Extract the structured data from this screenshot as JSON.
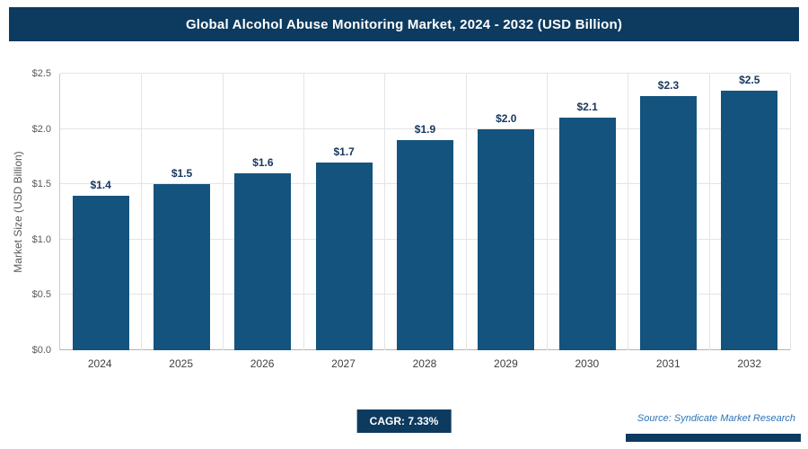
{
  "header": {
    "title": "Global Alcohol Abuse Monitoring Market, 2024 - 2032 (USD Billion)"
  },
  "chart_data": {
    "type": "bar",
    "title": "Global Alcohol Abuse Monitoring Market, 2024 - 2032 (USD Billion)",
    "categories": [
      "2024",
      "2025",
      "2026",
      "2027",
      "2028",
      "2029",
      "2030",
      "2031",
      "2032"
    ],
    "values": [
      1.4,
      1.5,
      1.6,
      1.7,
      1.9,
      2.0,
      2.1,
      2.3,
      2.5
    ],
    "value_labels": [
      "$1.4",
      "$1.5",
      "$1.6",
      "$1.7",
      "$1.9",
      "$2.0",
      "$2.1",
      "$2.3",
      "$2.5"
    ],
    "xlabel": "",
    "ylabel": "Market Size (USD Billion)",
    "ylim": [
      0,
      2.5
    ],
    "ytick_values": [
      0,
      0.5,
      1.0,
      1.5,
      2.0,
      2.5
    ],
    "ytick_labels": [
      "$0.0",
      "$0.5",
      "$1.0",
      "$1.5",
      "$2.0",
      "$2.5"
    ],
    "grid": true,
    "legend": "none"
  },
  "colors": {
    "bar": "#14537d",
    "header_bg": "#0d3a5f",
    "badge_bg": "#0d3a5f",
    "value_label_text": "#17365d",
    "source_text": "#2e74b5"
  },
  "footer": {
    "cagr": "CAGR: 7.33%",
    "source": "Source: Syndicate Market Research"
  }
}
